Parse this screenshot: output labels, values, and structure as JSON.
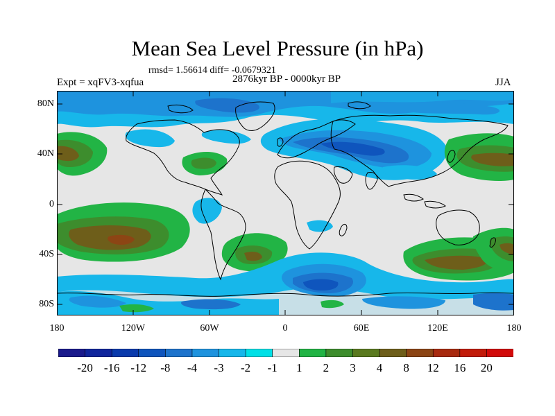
{
  "title": "Mean Sea Level Pressure (in hPa)",
  "stats": "rmsd= 1.56614  diff= -0.0679321",
  "period": "2876kyr BP - 0000kyr BP",
  "experiment": "Expt = xqFV3-xqfua",
  "season": "JJA",
  "map": {
    "background_color": "#e6e6e6",
    "lat_labels": [
      "80N",
      "40N",
      "0",
      "40S",
      "80S"
    ],
    "lon_labels": [
      "180",
      "120W",
      "60W",
      "0",
      "60E",
      "120E",
      "180"
    ]
  },
  "colorbar": {
    "labels": [
      "-20",
      "-16",
      "-12",
      "-8",
      "-4",
      "-3",
      "-2",
      "-1",
      "1",
      "2",
      "3",
      "4",
      "8",
      "12",
      "16",
      "20"
    ],
    "colors": [
      "#1a1a8c",
      "#10259c",
      "#0a3aac",
      "#0f55bd",
      "#1d73cc",
      "#1e93de",
      "#17b7ea",
      "#00e0e6",
      "#e6e6e6",
      "#22b445",
      "#3d8d2d",
      "#5a7a1f",
      "#6e5e1a",
      "#8c4514",
      "#a82a0f",
      "#c21b0a",
      "#d20a0a"
    ]
  }
}
